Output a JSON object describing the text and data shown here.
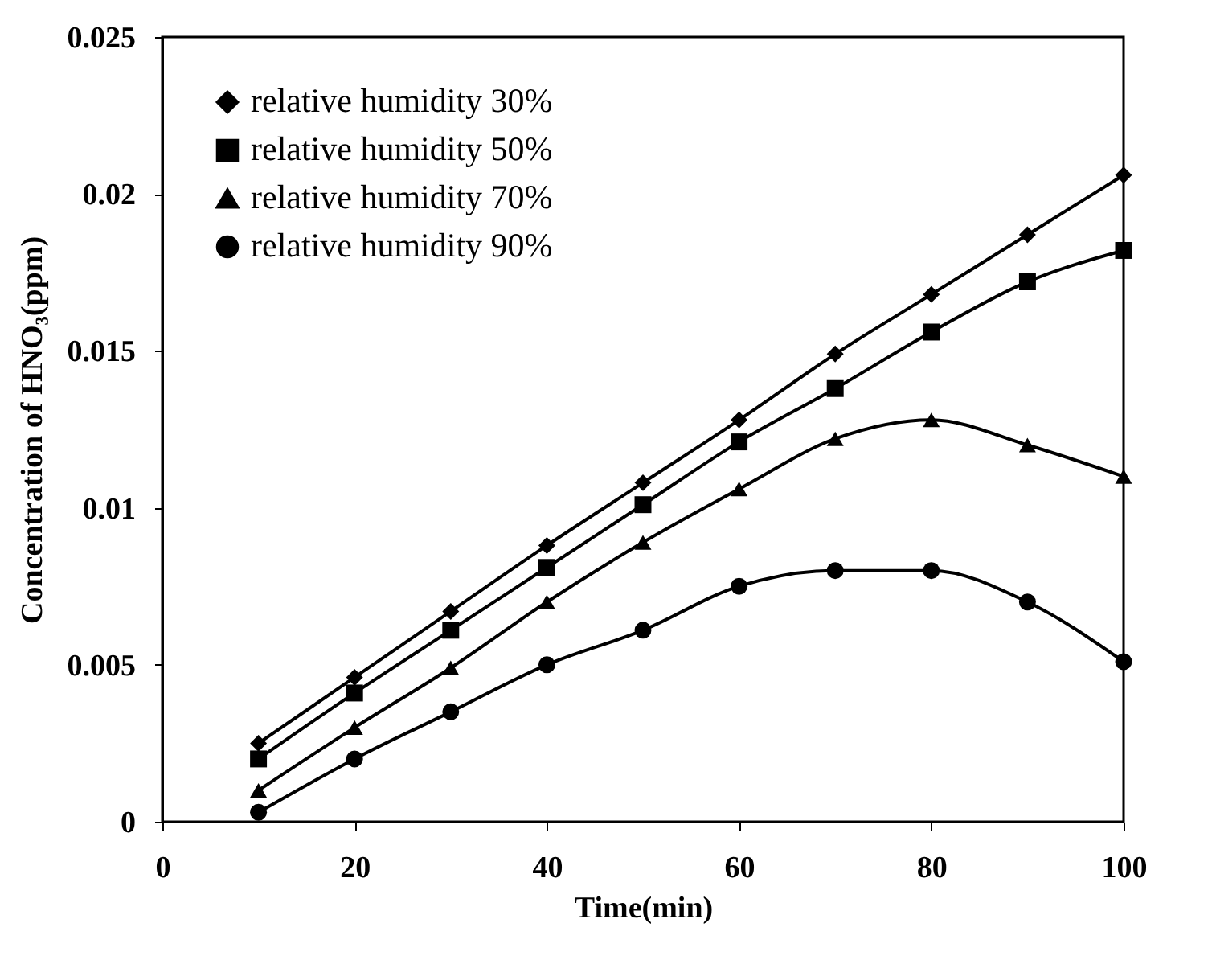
{
  "chart_data": {
    "type": "line",
    "xlabel": "Time(min)",
    "ylabel": "Concentration of HNO₃(ppm)",
    "x": [
      10,
      20,
      30,
      40,
      50,
      60,
      70,
      80,
      90,
      100
    ],
    "series": [
      {
        "name": "relative humidity 30%",
        "color": "#000000",
        "marker": "diamond",
        "values": [
          0.0025,
          0.0046,
          0.0067,
          0.0088,
          0.0108,
          0.0128,
          0.0149,
          0.0168,
          0.0187,
          0.0206
        ]
      },
      {
        "name": "relative humidity 50%",
        "color": "#000000",
        "marker": "square",
        "values": [
          0.002,
          0.0041,
          0.0061,
          0.0081,
          0.0101,
          0.0121,
          0.0138,
          0.0156,
          0.0172,
          0.0182
        ]
      },
      {
        "name": "relative humidity 70%",
        "color": "#000000",
        "marker": "triangle",
        "values": [
          0.001,
          0.003,
          0.0049,
          0.007,
          0.0089,
          0.0106,
          0.0122,
          0.0128,
          0.012,
          0.011
        ]
      },
      {
        "name": "relative humidity 90%",
        "color": "#000000",
        "marker": "circle",
        "values": [
          0.0003,
          0.002,
          0.0035,
          0.005,
          0.0061,
          0.0075,
          0.008,
          0.008,
          0.007,
          0.0051
        ]
      }
    ],
    "xlim": [
      0,
      100
    ],
    "xticks": [
      0,
      20,
      40,
      60,
      80,
      100
    ],
    "ylim": [
      0,
      0.025
    ],
    "yticks": [
      0,
      0.005,
      0.01,
      0.015,
      0.02,
      0.025
    ],
    "grid": false,
    "legend": "top left",
    "line_style": "solid"
  }
}
